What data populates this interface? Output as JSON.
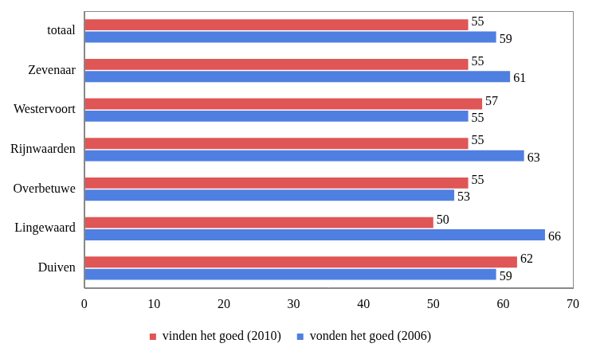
{
  "chart_data": {
    "type": "bar",
    "orientation": "horizontal",
    "categories": [
      "totaal",
      "Zevenaar",
      "Westervoort",
      "Rijnwaarden",
      "Overbetuwe",
      "Lingewaard",
      "Duiven"
    ],
    "series": [
      {
        "name": "vinden het goed (2010)",
        "color": "#e05555",
        "values": [
          55,
          55,
          57,
          55,
          55,
          50,
          62
        ]
      },
      {
        "name": "vonden het goed (2006)",
        "color": "#4f7fe0",
        "values": [
          59,
          61,
          55,
          63,
          53,
          66,
          59
        ]
      }
    ],
    "xlim": [
      0,
      70
    ],
    "xticks": [
      0,
      10,
      20,
      30,
      40,
      50,
      60,
      70
    ],
    "grid": false,
    "legend": "bottom",
    "data_labels": true
  }
}
